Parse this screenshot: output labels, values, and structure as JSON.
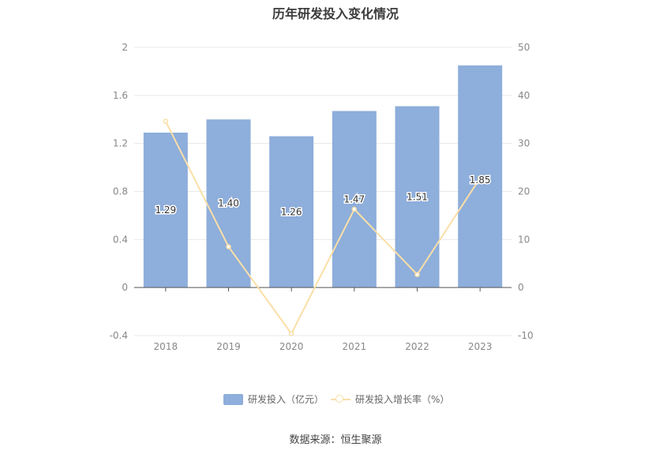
{
  "title": "历年研发投入变化情况",
  "source": "数据来源：恒生聚源",
  "legend": {
    "bar_label": "研发投入（亿元）",
    "line_label": "研发投入增长率（%）"
  },
  "colors": {
    "bar": "#8eaedb",
    "line": "#f9dfa7",
    "grid": "#e8e8e8",
    "axis": "#555555",
    "tick_text": "#888888"
  },
  "chart_data": {
    "type": "bar",
    "categories": [
      "2018",
      "2019",
      "2020",
      "2021",
      "2022",
      "2023"
    ],
    "series": [
      {
        "name": "研发投入（亿元）",
        "type": "bar",
        "axis": "left",
        "values": [
          1.29,
          1.4,
          1.26,
          1.47,
          1.51,
          1.85
        ],
        "labels": [
          "1.29",
          "1.40",
          "1.26",
          "1.47",
          "1.51",
          "1.85"
        ]
      },
      {
        "name": "研发投入增长率（%）",
        "type": "line",
        "axis": "right",
        "values": [
          34.6,
          8.5,
          -9.6,
          16.3,
          2.7,
          22.8
        ]
      }
    ],
    "y_left": {
      "ticks": [
        "2",
        "1.6",
        "1.2",
        "0.8",
        "0.4",
        "0",
        "-0.4"
      ],
      "ylim": [
        -0.4,
        2
      ]
    },
    "y_right": {
      "ticks": [
        "50",
        "40",
        "30",
        "20",
        "10",
        "0",
        "-10"
      ],
      "ylim": [
        -10,
        50
      ]
    },
    "legend_position": "bottom",
    "grid": true
  }
}
